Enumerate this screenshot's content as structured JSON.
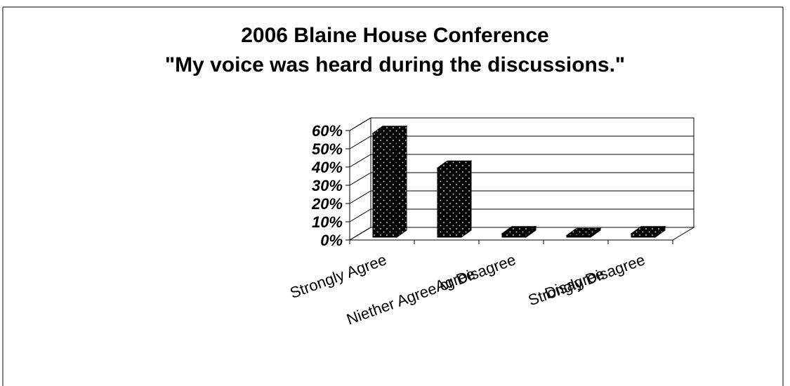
{
  "chart_data": {
    "type": "bar",
    "style": "3d",
    "title": "2006 Blaine House Conference",
    "subtitle": "\"My voice was heard during the discussions.\"",
    "categories": [
      "Strongly Agree",
      "Agree",
      "Niether Agree or Disagree",
      "Disagree",
      "Strongly Disagree"
    ],
    "values": [
      0.57,
      0.38,
      0.02,
      0.01,
      0.02
    ],
    "ylim": [
      0,
      0.6
    ],
    "yticks": [
      "0%",
      "10%",
      "20%",
      "30%",
      "40%",
      "50%",
      "60%"
    ],
    "xlabel": "",
    "ylabel": "",
    "grid": true,
    "legend": "none",
    "colors": {
      "bar": "#000000",
      "bar_dots": "#ffffff",
      "grid": "#000000",
      "background": "#ffffff"
    }
  }
}
